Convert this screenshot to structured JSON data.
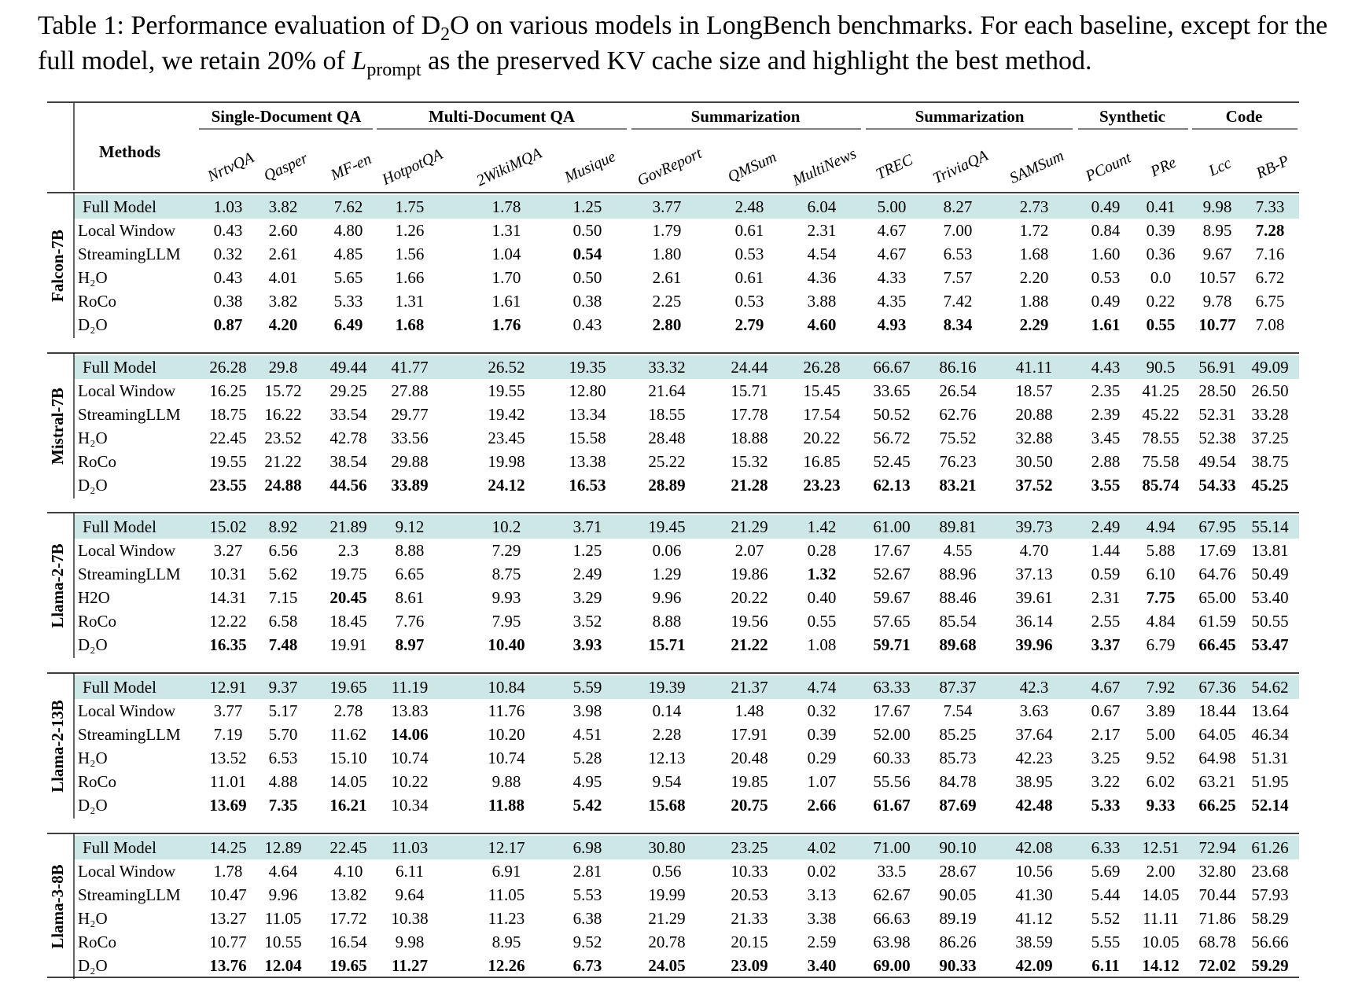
{
  "caption": {
    "label": "Table 1:",
    "text_before": " Performance evaluation of D",
    "sub1": "2",
    "text_mid": "O on various models in LongBench benchmarks. For each baseline, except for the full model, we retain 20% of ",
    "lvar": "L",
    "lsub": "prompt",
    "text_after": " as the preserved KV cache size and highlight the best method."
  },
  "table": {
    "methods_header": "Methods",
    "groups": [
      "Single-Document QA",
      "Multi-Document QA",
      "Summarization",
      "Summarization",
      "Synthetic",
      "Code"
    ],
    "columns": [
      "NrtvQA",
      "Qasper",
      "MF-en",
      "HotpotQA",
      "2WikiMQA",
      "Musique",
      "GovReport",
      "QMSum",
      "MultiNews",
      "TREC",
      "TriviaQA",
      "SAMSum",
      "PCount",
      "PRe",
      "Lcc",
      "RB-P"
    ],
    "blocks": [
      {
        "model": "Falcon-7B",
        "rows": [
          {
            "method": "Full Model",
            "values": [
              "1.03",
              "3.82",
              "7.62",
              "1.75",
              "1.78",
              "1.25",
              "3.77",
              "2.48",
              "6.04",
              "5.00",
              "8.27",
              "2.73",
              "0.49",
              "0.41",
              "9.98",
              "7.33"
            ],
            "bold": []
          },
          {
            "method": "Local Window",
            "values": [
              "0.43",
              "2.60",
              "4.80",
              "1.26",
              "1.31",
              "0.50",
              "1.79",
              "0.61",
              "2.31",
              "4.67",
              "7.00",
              "1.72",
              "0.84",
              "0.39",
              "8.95",
              "7.28"
            ],
            "bold": [
              15
            ]
          },
          {
            "method": "StreamingLLM",
            "values": [
              "0.32",
              "2.61",
              "4.85",
              "1.56",
              "1.04",
              "0.54",
              "1.80",
              "0.53",
              "4.54",
              "4.67",
              "6.53",
              "1.68",
              "1.60",
              "0.36",
              "9.67",
              "7.16"
            ],
            "bold": [
              5
            ]
          },
          {
            "method": "H₂O",
            "values": [
              "0.43",
              "4.01",
              "5.65",
              "1.66",
              "1.70",
              "0.50",
              "2.61",
              "0.61",
              "4.36",
              "4.33",
              "7.57",
              "2.20",
              "0.53",
              "0.0",
              "10.57",
              "6.72"
            ],
            "bold": []
          },
          {
            "method": "RoCo",
            "values": [
              "0.38",
              "3.82",
              "5.33",
              "1.31",
              "1.61",
              "0.38",
              "2.25",
              "0.53",
              "3.88",
              "4.35",
              "7.42",
              "1.88",
              "0.49",
              "0.22",
              "9.78",
              "6.75"
            ],
            "bold": []
          },
          {
            "method": "D₂O",
            "values": [
              "0.87",
              "4.20",
              "6.49",
              "1.68",
              "1.76",
              "0.43",
              "2.80",
              "2.79",
              "4.60",
              "4.93",
              "8.34",
              "2.29",
              "1.61",
              "0.55",
              "10.77",
              "7.08"
            ],
            "bold": [
              0,
              1,
              2,
              3,
              4,
              6,
              7,
              8,
              9,
              10,
              11,
              12,
              13,
              14
            ]
          }
        ]
      },
      {
        "model": "Mistral-7B",
        "rows": [
          {
            "method": "Full Model",
            "values": [
              "26.28",
              "29.8",
              "49.44",
              "41.77",
              "26.52",
              "19.35",
              "33.32",
              "24.44",
              "26.28",
              "66.67",
              "86.16",
              "41.11",
              "4.43",
              "90.5",
              "56.91",
              "49.09"
            ],
            "bold": []
          },
          {
            "method": "Local Window",
            "values": [
              "16.25",
              "15.72",
              "29.25",
              "27.88",
              "19.55",
              "12.80",
              "21.64",
              "15.71",
              "15.45",
              "33.65",
              "26.54",
              "18.57",
              "2.35",
              "41.25",
              "28.50",
              "26.50"
            ],
            "bold": []
          },
          {
            "method": "StreamingLLM",
            "values": [
              "18.75",
              "16.22",
              "33.54",
              "29.77",
              "19.42",
              "13.34",
              "18.55",
              "17.78",
              "17.54",
              "50.52",
              "62.76",
              "20.88",
              "2.39",
              "45.22",
              "52.31",
              "33.28"
            ],
            "bold": []
          },
          {
            "method": "H₂O",
            "values": [
              "22.45",
              "23.52",
              "42.78",
              "33.56",
              "23.45",
              "15.58",
              "28.48",
              "18.88",
              "20.22",
              "56.72",
              "75.52",
              "32.88",
              "3.45",
              "78.55",
              "52.38",
              "37.25"
            ],
            "bold": []
          },
          {
            "method": "RoCo",
            "values": [
              "19.55",
              "21.22",
              "38.54",
              "29.88",
              "19.98",
              "13.38",
              "25.22",
              "15.32",
              "16.85",
              "52.45",
              "76.23",
              "30.50",
              "2.88",
              "75.58",
              "49.54",
              "38.75"
            ],
            "bold": []
          },
          {
            "method": "D₂O",
            "values": [
              "23.55",
              "24.88",
              "44.56",
              "33.89",
              "24.12",
              "16.53",
              "28.89",
              "21.28",
              "23.23",
              "62.13",
              "83.21",
              "37.52",
              "3.55",
              "85.74",
              "54.33",
              "45.25"
            ],
            "bold": [
              0,
              1,
              2,
              3,
              4,
              5,
              6,
              7,
              8,
              9,
              10,
              11,
              12,
              13,
              14,
              15
            ]
          }
        ]
      },
      {
        "model": "Llama-2-7B",
        "rows": [
          {
            "method": "Full Model",
            "values": [
              "15.02",
              "8.92",
              "21.89",
              "9.12",
              "10.2",
              "3.71",
              "19.45",
              "21.29",
              "1.42",
              "61.00",
              "89.81",
              "39.73",
              "2.49",
              "4.94",
              "67.95",
              "55.14"
            ],
            "bold": []
          },
          {
            "method": "Local Window",
            "values": [
              "3.27",
              "6.56",
              "2.3",
              "8.88",
              "7.29",
              "1.25",
              "0.06",
              "2.07",
              "0.28",
              "17.67",
              "4.55",
              "4.70",
              "1.44",
              "5.88",
              "17.69",
              "13.81"
            ],
            "bold": []
          },
          {
            "method": "StreamingLLM",
            "values": [
              "10.31",
              "5.62",
              "19.75",
              "6.65",
              "8.75",
              "2.49",
              "1.29",
              "19.86",
              "1.32",
              "52.67",
              "88.96",
              "37.13",
              "0.59",
              "6.10",
              "64.76",
              "50.49"
            ],
            "bold": [
              8
            ]
          },
          {
            "method": "H2O",
            "values": [
              "14.31",
              "7.15",
              "20.45",
              "8.61",
              "9.93",
              "3.29",
              "9.96",
              "20.22",
              "0.40",
              "59.67",
              "88.46",
              "39.61",
              "2.31",
              "7.75",
              "65.00",
              "53.40"
            ],
            "bold": [
              2,
              13
            ]
          },
          {
            "method": "RoCo",
            "values": [
              "12.22",
              "6.58",
              "18.45",
              "7.76",
              "7.95",
              "3.52",
              "8.88",
              "19.56",
              "0.55",
              "57.65",
              "85.54",
              "36.14",
              "2.55",
              "4.84",
              "61.59",
              "50.55"
            ],
            "bold": []
          },
          {
            "method": "D₂O",
            "values": [
              "16.35",
              "7.48",
              "19.91",
              "8.97",
              "10.40",
              "3.93",
              "15.71",
              "21.22",
              "1.08",
              "59.71",
              "89.68",
              "39.96",
              "3.37",
              "6.79",
              "66.45",
              "53.47"
            ],
            "bold": [
              0,
              1,
              3,
              4,
              5,
              6,
              7,
              9,
              10,
              11,
              12,
              14,
              15
            ]
          }
        ]
      },
      {
        "model": "Llama-2-13B",
        "rows": [
          {
            "method": "Full Model",
            "values": [
              "12.91",
              "9.37",
              "19.65",
              "11.19",
              "10.84",
              "5.59",
              "19.39",
              "21.37",
              "4.74",
              "63.33",
              "87.37",
              "42.3",
              "4.67",
              "7.92",
              "67.36",
              "54.62"
            ],
            "bold": []
          },
          {
            "method": "Local Window",
            "values": [
              "3.77",
              "5.17",
              "2.78",
              "13.83",
              "11.76",
              "3.98",
              "0.14",
              "1.48",
              "0.32",
              "17.67",
              "7.54",
              "3.63",
              "0.67",
              "3.89",
              "18.44",
              "13.64"
            ],
            "bold": []
          },
          {
            "method": "StreamingLLM",
            "values": [
              "7.19",
              "5.70",
              "11.62",
              "14.06",
              "10.20",
              "4.51",
              "2.28",
              "17.91",
              "0.39",
              "52.00",
              "85.25",
              "37.64",
              "2.17",
              "5.00",
              "64.05",
              "46.34"
            ],
            "bold": [
              3
            ]
          },
          {
            "method": "H₂O",
            "values": [
              "13.52",
              "6.53",
              "15.10",
              "10.74",
              "10.74",
              "5.28",
              "12.13",
              "20.48",
              "0.29",
              "60.33",
              "85.73",
              "42.23",
              "3.25",
              "9.52",
              "64.98",
              "51.31"
            ],
            "bold": []
          },
          {
            "method": "RoCo",
            "values": [
              "11.01",
              "4.88",
              "14.05",
              "10.22",
              "9.88",
              "4.95",
              "9.54",
              "19.85",
              "1.07",
              "55.56",
              "84.78",
              "38.95",
              "3.22",
              "6.02",
              "63.21",
              "51.95"
            ],
            "bold": []
          },
          {
            "method": "D₂O",
            "values": [
              "13.69",
              "7.35",
              "16.21",
              "10.34",
              "11.88",
              "5.42",
              "15.68",
              "20.75",
              "2.66",
              "61.67",
              "87.69",
              "42.48",
              "5.33",
              "9.33",
              "66.25",
              "52.14"
            ],
            "bold": [
              0,
              1,
              2,
              4,
              5,
              6,
              7,
              8,
              9,
              10,
              11,
              12,
              13,
              14,
              15
            ]
          }
        ]
      },
      {
        "model": "Llama-3-8B",
        "rows": [
          {
            "method": "Full Model",
            "values": [
              "14.25",
              "12.89",
              "22.45",
              "11.03",
              "12.17",
              "6.98",
              "30.80",
              "23.25",
              "4.02",
              "71.00",
              "90.10",
              "42.08",
              "6.33",
              "12.51",
              "72.94",
              "61.26"
            ],
            "bold": []
          },
          {
            "method": "Local Window",
            "values": [
              "1.78",
              "4.64",
              "4.10",
              "6.11",
              "6.91",
              "2.81",
              "0.56",
              "10.33",
              "0.02",
              "33.5",
              "28.67",
              "10.56",
              "5.69",
              "2.00",
              "32.80",
              "23.68"
            ],
            "bold": []
          },
          {
            "method": "StreamingLLM",
            "values": [
              "10.47",
              "9.96",
              "13.82",
              "9.64",
              "11.05",
              "5.53",
              "19.99",
              "20.53",
              "3.13",
              "62.67",
              "90.05",
              "41.30",
              "5.44",
              "14.05",
              "70.44",
              "57.93"
            ],
            "bold": []
          },
          {
            "method": "H₂O",
            "values": [
              "13.27",
              "11.05",
              "17.72",
              "10.38",
              "11.23",
              "6.38",
              "21.29",
              "21.33",
              "3.38",
              "66.63",
              "89.19",
              "41.12",
              "5.52",
              "11.11",
              "71.86",
              "58.29"
            ],
            "bold": []
          },
          {
            "method": "RoCo",
            "values": [
              "10.77",
              "10.55",
              "16.54",
              "9.98",
              "8.95",
              "9.52",
              "20.78",
              "20.15",
              "2.59",
              "63.98",
              "86.26",
              "38.59",
              "5.55",
              "10.05",
              "68.78",
              "56.66"
            ],
            "bold": []
          },
          {
            "method": "D₂O",
            "values": [
              "13.76",
              "12.04",
              "19.65",
              "11.27",
              "12.26",
              "6.73",
              "24.05",
              "23.09",
              "3.40",
              "69.00",
              "90.33",
              "42.09",
              "6.11",
              "14.12",
              "72.02",
              "59.29"
            ],
            "bold": [
              0,
              1,
              2,
              3,
              4,
              5,
              6,
              7,
              8,
              9,
              10,
              11,
              12,
              13,
              14,
              15
            ]
          }
        ]
      }
    ]
  },
  "colors": {
    "full_model_band": "#cde6e6",
    "rule": "#000000"
  }
}
